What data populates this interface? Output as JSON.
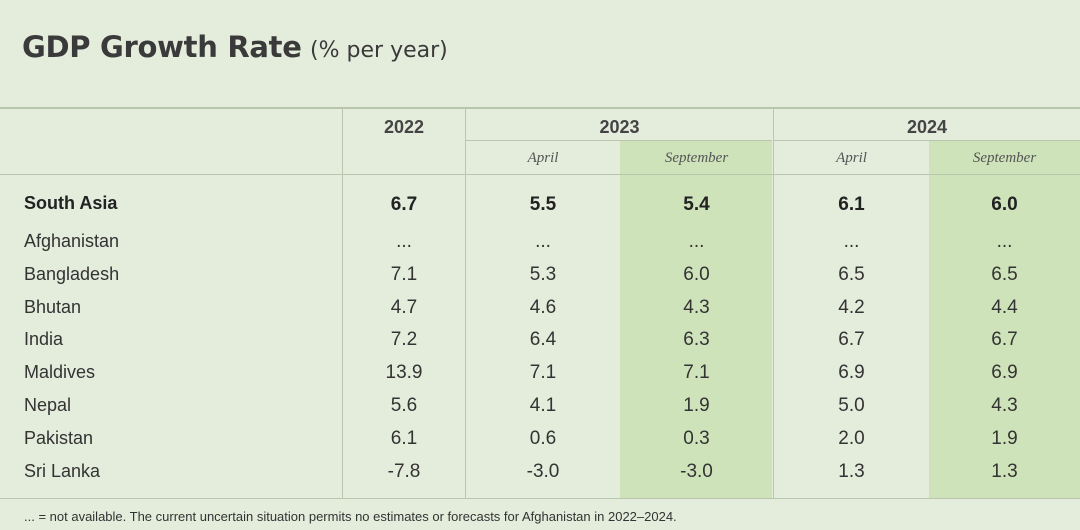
{
  "title": {
    "main": "GDP Growth Rate",
    "sub": "(% per year)"
  },
  "header": {
    "years": [
      "2022",
      "2023",
      "2024"
    ],
    "subcolumns": [
      "April",
      "September",
      "April",
      "September"
    ]
  },
  "chart_data": {
    "type": "table",
    "title": "GDP Growth Rate (% per year)",
    "columns": [
      "2022",
      "2023 April",
      "2023 September",
      "2024 April",
      "2024 September"
    ],
    "rows": [
      {
        "label": "South Asia",
        "values": [
          "6.7",
          "5.5",
          "5.4",
          "6.1",
          "6.0"
        ],
        "bold": true
      },
      {
        "label": "Afghanistan",
        "values": [
          "...",
          "...",
          "...",
          "...",
          "..."
        ]
      },
      {
        "label": "Bangladesh",
        "values": [
          "7.1",
          "5.3",
          "6.0",
          "6.5",
          "6.5"
        ]
      },
      {
        "label": "Bhutan",
        "values": [
          "4.7",
          "4.6",
          "4.3",
          "4.2",
          "4.4"
        ]
      },
      {
        "label": "India",
        "values": [
          "7.2",
          "6.4",
          "6.3",
          "6.7",
          "6.7"
        ]
      },
      {
        "label": "Maldives",
        "values": [
          "13.9",
          "7.1",
          "7.1",
          "6.9",
          "6.9"
        ]
      },
      {
        "label": "Nepal",
        "values": [
          "5.6",
          "4.1",
          "1.9",
          "5.0",
          "4.3"
        ]
      },
      {
        "label": "Pakistan",
        "values": [
          "6.1",
          "0.6",
          "0.3",
          "2.0",
          "1.9"
        ]
      },
      {
        "label": "Sri Lanka",
        "values": [
          "-7.8",
          "-3.0",
          "-3.0",
          "1.3",
          "1.3"
        ]
      }
    ],
    "highlight_columns": [
      "2023 September",
      "2024 September"
    ],
    "highlight_color": "#cfe3bb"
  },
  "footnote": "... = not available. The current uncertain situation permits no estimates or forecasts for Afghanistan in 2022–2024."
}
